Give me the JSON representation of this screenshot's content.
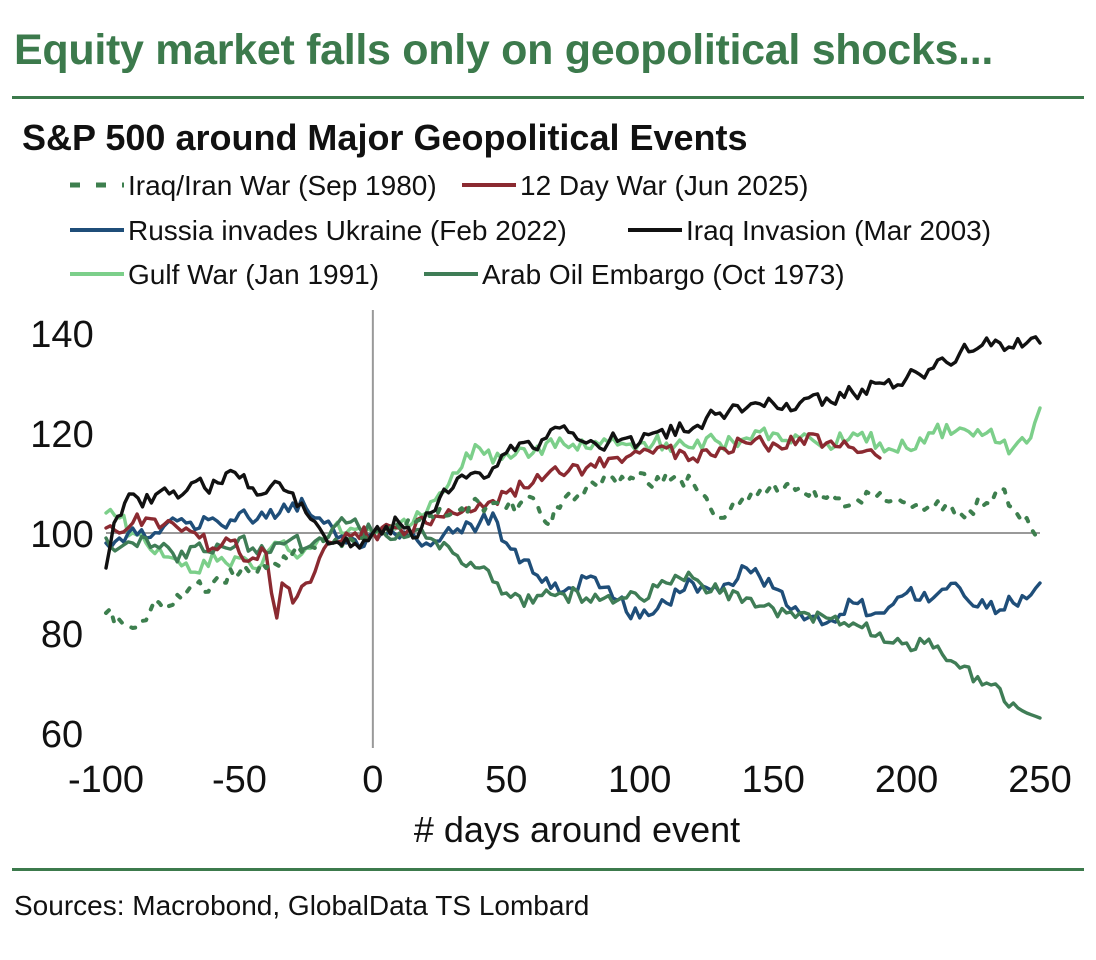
{
  "header": {
    "headline": "Equity market falls only on geopolitical shocks...",
    "chart_title": "S&P 500 around Major Geopolitical Events"
  },
  "footer": {
    "source": "Sources: Macrobond, GlobalData TS Lombard"
  },
  "colors": {
    "brand": "#3c7a4c",
    "rule": "#3c7a4c",
    "axis": "#999999"
  },
  "chart_data": {
    "type": "line",
    "title": "S&P 500 around Major Geopolitical Events",
    "xlabel": "# days around event",
    "ylabel": "",
    "xlim": [
      -100,
      250
    ],
    "ylim": [
      57,
      143
    ],
    "xticks": [
      "-100",
      "-50",
      "0",
      "50",
      "100",
      "150",
      "200",
      "250"
    ],
    "yticks": [
      "140",
      "120",
      "100",
      "80",
      "60"
    ],
    "reference_line_y": 100,
    "reference_line_x": 0,
    "legend_position": "top",
    "series": [
      {
        "name": "Iraq/Iran War (Sep 1980)",
        "color": "#3d7f4e",
        "dash": "dotted",
        "points": [
          [
            -100,
            84
          ],
          [
            -90,
            81
          ],
          [
            -80,
            86
          ],
          [
            -70,
            88
          ],
          [
            -60,
            90
          ],
          [
            -50,
            92
          ],
          [
            -40,
            93
          ],
          [
            -30,
            96
          ],
          [
            -20,
            98
          ],
          [
            -10,
            99
          ],
          [
            0,
            100
          ],
          [
            10,
            101
          ],
          [
            20,
            103
          ],
          [
            30,
            104
          ],
          [
            40,
            106
          ],
          [
            50,
            105
          ],
          [
            60,
            107
          ],
          [
            65,
            102
          ],
          [
            70,
            105
          ],
          [
            80,
            109
          ],
          [
            90,
            111
          ],
          [
            100,
            112
          ],
          [
            105,
            109
          ],
          [
            110,
            112
          ],
          [
            120,
            110
          ],
          [
            125,
            107
          ],
          [
            130,
            103
          ],
          [
            140,
            106
          ],
          [
            150,
            110
          ],
          [
            160,
            109
          ],
          [
            170,
            107
          ],
          [
            180,
            106
          ],
          [
            190,
            108
          ],
          [
            200,
            106
          ],
          [
            210,
            105
          ],
          [
            220,
            104
          ],
          [
            230,
            106
          ],
          [
            235,
            109
          ],
          [
            240,
            105
          ],
          [
            245,
            103
          ],
          [
            250,
            100
          ]
        ]
      },
      {
        "name": "12 Day War (Jun 2025)",
        "color": "#8b2a31",
        "dash": "solid",
        "points": [
          [
            -100,
            101
          ],
          [
            -95,
            100
          ],
          [
            -90,
            102
          ],
          [
            -85,
            103
          ],
          [
            -80,
            101
          ],
          [
            -75,
            102
          ],
          [
            -70,
            101
          ],
          [
            -65,
            99
          ],
          [
            -60,
            97
          ],
          [
            -55,
            99
          ],
          [
            -50,
            96
          ],
          [
            -45,
            95
          ],
          [
            -40,
            96
          ],
          [
            -38,
            88
          ],
          [
            -36,
            83
          ],
          [
            -34,
            90
          ],
          [
            -30,
            86
          ],
          [
            -25,
            90
          ],
          [
            -20,
            95
          ],
          [
            -15,
            98
          ],
          [
            -10,
            100
          ],
          [
            0,
            100
          ],
          [
            10,
            101
          ],
          [
            20,
            102
          ],
          [
            30,
            104
          ],
          [
            40,
            106
          ],
          [
            50,
            108
          ],
          [
            60,
            110
          ],
          [
            70,
            112
          ],
          [
            80,
            113
          ],
          [
            90,
            115
          ],
          [
            100,
            116
          ],
          [
            110,
            117
          ],
          [
            120,
            115
          ],
          [
            130,
            117
          ],
          [
            140,
            118
          ],
          [
            150,
            118
          ],
          [
            160,
            119
          ],
          [
            170,
            118
          ],
          [
            180,
            117
          ],
          [
            190,
            115
          ]
        ]
      },
      {
        "name": "Russia invades Ukraine (Feb 2022)",
        "color": "#1f4e79",
        "dash": "solid",
        "points": [
          [
            -100,
            98
          ],
          [
            -95,
            99
          ],
          [
            -90,
            101
          ],
          [
            -85,
            99
          ],
          [
            -80,
            100
          ],
          [
            -75,
            103
          ],
          [
            -70,
            102
          ],
          [
            -65,
            101
          ],
          [
            -60,
            103
          ],
          [
            -55,
            101
          ],
          [
            -50,
            104
          ],
          [
            -45,
            102
          ],
          [
            -40,
            103
          ],
          [
            -35,
            104
          ],
          [
            -30,
            106
          ],
          [
            -25,
            105
          ],
          [
            -20,
            103
          ],
          [
            -15,
            101
          ],
          [
            -10,
            98
          ],
          [
            -5,
            97
          ],
          [
            0,
            100
          ],
          [
            10,
            99
          ],
          [
            20,
            98
          ],
          [
            30,
            100
          ],
          [
            40,
            102
          ],
          [
            45,
            104
          ],
          [
            50,
            98
          ],
          [
            60,
            92
          ],
          [
            70,
            88
          ],
          [
            80,
            91
          ],
          [
            90,
            87
          ],
          [
            100,
            83
          ],
          [
            110,
            86
          ],
          [
            120,
            90
          ],
          [
            130,
            88
          ],
          [
            140,
            93
          ],
          [
            150,
            89
          ],
          [
            160,
            84
          ],
          [
            170,
            82
          ],
          [
            180,
            86
          ],
          [
            190,
            84
          ],
          [
            200,
            88
          ],
          [
            210,
            87
          ],
          [
            220,
            89
          ],
          [
            230,
            85
          ],
          [
            240,
            86
          ],
          [
            250,
            90
          ]
        ]
      },
      {
        "name": "Iraq Invasion (Mar 2003)",
        "color": "#111111",
        "dash": "solid",
        "points": [
          [
            -100,
            93
          ],
          [
            -97,
            102
          ],
          [
            -93,
            106
          ],
          [
            -88,
            107
          ],
          [
            -83,
            106
          ],
          [
            -78,
            109
          ],
          [
            -73,
            107
          ],
          [
            -68,
            110
          ],
          [
            -63,
            109
          ],
          [
            -58,
            110
          ],
          [
            -55,
            112
          ],
          [
            -50,
            111
          ],
          [
            -45,
            109
          ],
          [
            -40,
            108
          ],
          [
            -35,
            110
          ],
          [
            -30,
            108
          ],
          [
            -25,
            104
          ],
          [
            -20,
            101
          ],
          [
            -15,
            98
          ],
          [
            -10,
            99
          ],
          [
            -5,
            97
          ],
          [
            0,
            100
          ],
          [
            10,
            102
          ],
          [
            15,
            99
          ],
          [
            20,
            104
          ],
          [
            25,
            107
          ],
          [
            30,
            109
          ],
          [
            35,
            111
          ],
          [
            40,
            112
          ],
          [
            45,
            113
          ],
          [
            50,
            116
          ],
          [
            55,
            118
          ],
          [
            60,
            117
          ],
          [
            65,
            119
          ],
          [
            70,
            121
          ],
          [
            75,
            120
          ],
          [
            80,
            118
          ],
          [
            85,
            117
          ],
          [
            90,
            120
          ],
          [
            95,
            119
          ],
          [
            100,
            118
          ],
          [
            105,
            120
          ],
          [
            110,
            119
          ],
          [
            115,
            122
          ],
          [
            120,
            121
          ],
          [
            125,
            123
          ],
          [
            130,
            124
          ],
          [
            140,
            125
          ],
          [
            150,
            126
          ],
          [
            160,
            126
          ],
          [
            170,
            127
          ],
          [
            180,
            128
          ],
          [
            190,
            130
          ],
          [
            200,
            131
          ],
          [
            210,
            133
          ],
          [
            220,
            136
          ],
          [
            230,
            139
          ],
          [
            235,
            138
          ],
          [
            240,
            137
          ],
          [
            245,
            138
          ],
          [
            250,
            138
          ]
        ]
      },
      {
        "name": "Gulf War (Jan 1991)",
        "color": "#7ccf8a",
        "dash": "solid",
        "points": [
          [
            -100,
            104
          ],
          [
            -95,
            103
          ],
          [
            -90,
            100
          ],
          [
            -85,
            98
          ],
          [
            -80,
            97
          ],
          [
            -75,
            95
          ],
          [
            -70,
            94
          ],
          [
            -65,
            92
          ],
          [
            -60,
            96
          ],
          [
            -55,
            94
          ],
          [
            -50,
            95
          ],
          [
            -45,
            93
          ],
          [
            -40,
            96
          ],
          [
            -35,
            98
          ],
          [
            -30,
            96
          ],
          [
            -25,
            97
          ],
          [
            -20,
            99
          ],
          [
            -15,
            101
          ],
          [
            -10,
            100
          ],
          [
            -5,
            101
          ],
          [
            0,
            100
          ],
          [
            10,
            102
          ],
          [
            20,
            104
          ],
          [
            25,
            108
          ],
          [
            30,
            112
          ],
          [
            35,
            116
          ],
          [
            40,
            117
          ],
          [
            45,
            114
          ],
          [
            50,
            116
          ],
          [
            55,
            117
          ],
          [
            60,
            116
          ],
          [
            65,
            118
          ],
          [
            70,
            119
          ],
          [
            80,
            117
          ],
          [
            90,
            119
          ],
          [
            100,
            118
          ],
          [
            110,
            118
          ],
          [
            120,
            117
          ],
          [
            125,
            119
          ],
          [
            130,
            118
          ],
          [
            140,
            119
          ],
          [
            150,
            120
          ],
          [
            160,
            119
          ],
          [
            170,
            118
          ],
          [
            180,
            120
          ],
          [
            190,
            118
          ],
          [
            200,
            117
          ],
          [
            205,
            119
          ],
          [
            210,
            120
          ],
          [
            220,
            121
          ],
          [
            230,
            120
          ],
          [
            235,
            118
          ],
          [
            240,
            117
          ],
          [
            245,
            118
          ],
          [
            248,
            122
          ],
          [
            250,
            125
          ]
        ]
      },
      {
        "name": "Arab Oil Embargo (Oct 1973)",
        "color": "#3f7d56",
        "dash": "solid",
        "points": [
          [
            -100,
            99
          ],
          [
            -95,
            97
          ],
          [
            -90,
            98
          ],
          [
            -85,
            99
          ],
          [
            -80,
            97
          ],
          [
            -75,
            96
          ],
          [
            -70,
            95
          ],
          [
            -65,
            98
          ],
          [
            -60,
            96
          ],
          [
            -55,
            97
          ],
          [
            -50,
            99
          ],
          [
            -45,
            97
          ],
          [
            -40,
            96
          ],
          [
            -35,
            98
          ],
          [
            -30,
            99
          ],
          [
            -25,
            97
          ],
          [
            -20,
            99
          ],
          [
            -15,
            101
          ],
          [
            -10,
            102
          ],
          [
            -5,
            101
          ],
          [
            0,
            100
          ],
          [
            10,
            100
          ],
          [
            20,
            99
          ],
          [
            30,
            96
          ],
          [
            40,
            93
          ],
          [
            50,
            88
          ],
          [
            60,
            86
          ],
          [
            70,
            88
          ],
          [
            80,
            87
          ],
          [
            90,
            86
          ],
          [
            100,
            87
          ],
          [
            110,
            90
          ],
          [
            120,
            91
          ],
          [
            130,
            88
          ],
          [
            140,
            87
          ],
          [
            150,
            85
          ],
          [
            160,
            84
          ],
          [
            170,
            83
          ],
          [
            180,
            82
          ],
          [
            190,
            80
          ],
          [
            200,
            78
          ],
          [
            210,
            77
          ],
          [
            220,
            73
          ],
          [
            230,
            70
          ],
          [
            240,
            66
          ],
          [
            245,
            64
          ],
          [
            250,
            63
          ]
        ]
      }
    ]
  }
}
